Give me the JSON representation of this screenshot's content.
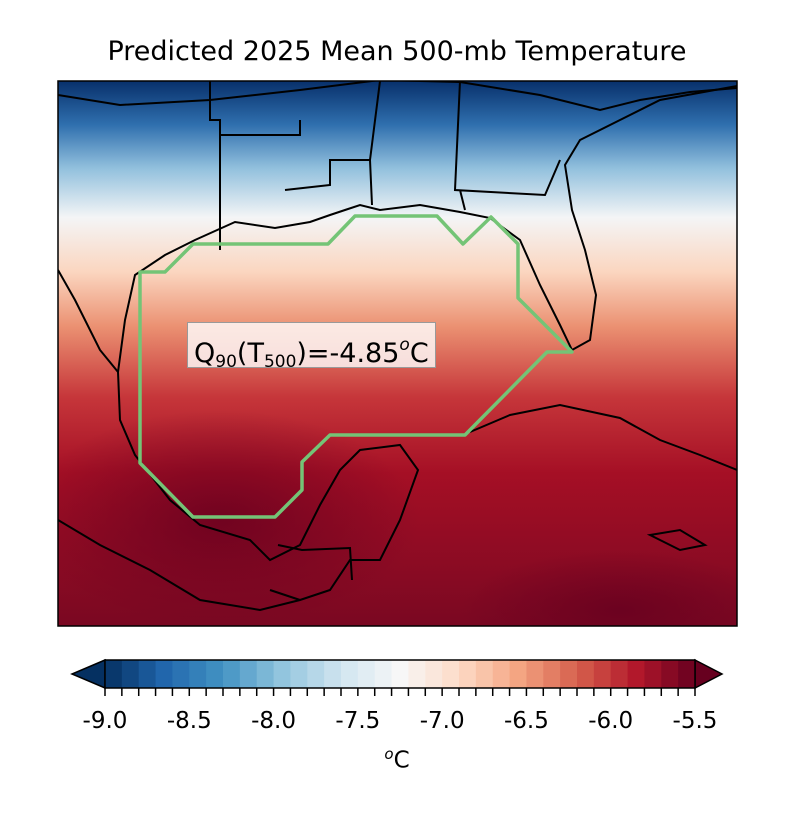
{
  "title": "Predicted 2025 Mean 500-mb Temperature",
  "annotation": {
    "q": "Q",
    "q_sub": "90",
    "t_open": "(T",
    "t_sub": "500",
    "rest": ")=-4.85",
    "deg": "o",
    "unit": "C"
  },
  "colorbar": {
    "min": -9.0,
    "max": -5.5,
    "step": 0.1,
    "colormap": "RdBu_r",
    "extend": "both",
    "ticks": [
      "-9.0",
      "-8.5",
      "-8.0",
      "-7.5",
      "-7.0",
      "-6.5",
      "-6.0",
      "-5.5"
    ],
    "label_sup": "o",
    "label": "C"
  },
  "region_outline_color": "#74c476"
}
